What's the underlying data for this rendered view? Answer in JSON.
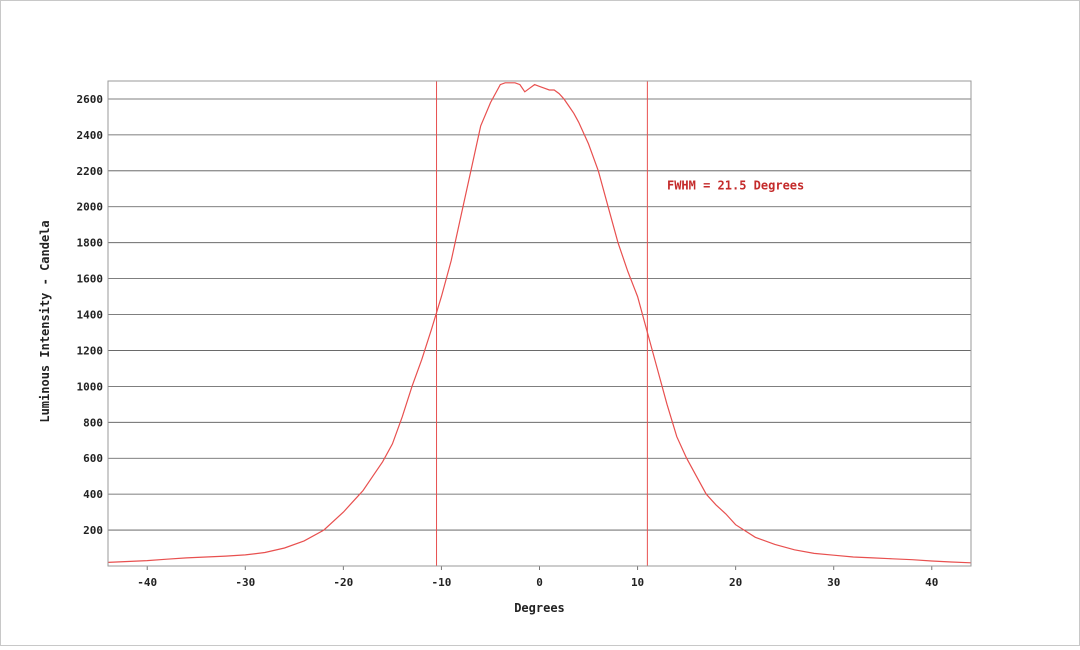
{
  "chart_data": {
    "type": "line",
    "title": "",
    "xlabel": "Degrees",
    "ylabel": "Luminous Intensity - Candela",
    "xlim": [
      -44,
      44
    ],
    "ylim": [
      0,
      2700
    ],
    "x_ticks": [
      -40,
      -30,
      -20,
      -10,
      0,
      10,
      20,
      30,
      40
    ],
    "y_ticks": [
      200,
      400,
      600,
      800,
      1000,
      1200,
      1400,
      1600,
      1800,
      2000,
      2200,
      2400,
      2600
    ],
    "grid": "horizontal",
    "legend": "none",
    "line_color": "#e8504f",
    "annotation": {
      "text": "FWHM = 21.5 Degrees",
      "x": 13,
      "y": 2095,
      "color": "#c42a2a"
    },
    "markers": [
      {
        "x": -10.5
      },
      {
        "x": 11
      }
    ],
    "series": [
      {
        "x": [
          -44,
          -42,
          -40,
          -38,
          -36,
          -34,
          -32,
          -30,
          -28,
          -26,
          -24,
          -22,
          -20,
          -19,
          -18,
          -17,
          -16,
          -15,
          -14,
          -13,
          -12,
          -11,
          -10,
          -9,
          -8,
          -7,
          -6,
          -5,
          -4.5,
          -4,
          -3.5,
          -3,
          -2.5,
          -2,
          -1.5,
          -1,
          -0.5,
          0,
          0.5,
          1,
          1.5,
          2,
          2.5,
          3,
          3.5,
          4,
          5,
          6,
          7,
          8,
          9,
          10,
          11,
          12,
          13,
          14,
          15,
          16,
          17,
          18,
          19,
          20,
          22,
          24,
          26,
          28,
          30,
          32,
          34,
          36,
          38,
          40,
          42,
          44
        ],
        "y": [
          20,
          25,
          30,
          38,
          45,
          50,
          55,
          62,
          75,
          100,
          140,
          200,
          300,
          360,
          420,
          500,
          580,
          680,
          830,
          1000,
          1150,
          1320,
          1500,
          1700,
          1950,
          2200,
          2450,
          2580,
          2630,
          2680,
          2690,
          2690,
          2690,
          2680,
          2640,
          2660,
          2680,
          2670,
          2660,
          2650,
          2650,
          2630,
          2600,
          2560,
          2520,
          2470,
          2350,
          2200,
          2000,
          1800,
          1640,
          1500,
          1300,
          1100,
          900,
          720,
          600,
          500,
          400,
          340,
          290,
          230,
          160,
          120,
          90,
          70,
          60,
          50,
          45,
          40,
          35,
          28,
          22,
          18
        ]
      }
    ]
  }
}
